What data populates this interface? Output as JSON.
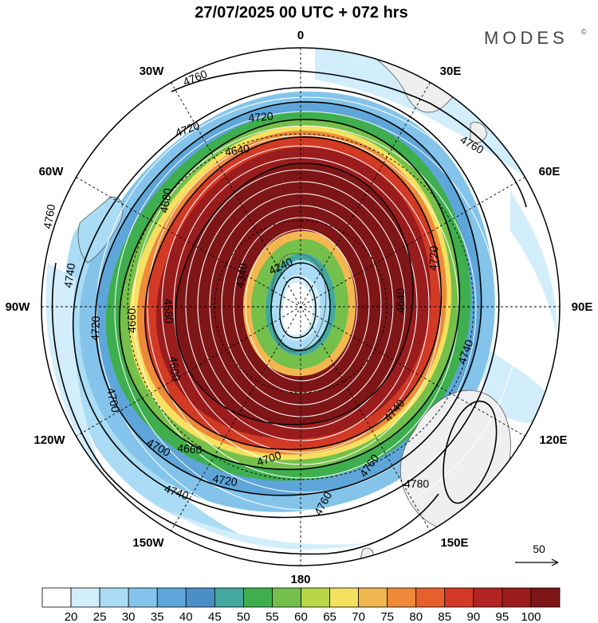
{
  "title": "27/07/2025  00 UTC  + 072 hrs",
  "brand": "MODES",
  "brand_mark": "©",
  "longitude_labels": {
    "n": "0",
    "ne30": "30E",
    "ne60": "60E",
    "e": "90E",
    "se120": "120E",
    "se150": "150E",
    "s": "180",
    "sw150": "150W",
    "sw120": "120W",
    "w": "90W",
    "nw60": "60W",
    "nw30": "30W"
  },
  "contour_labels": {
    "c4760a": "4760",
    "c4760b": "4760",
    "c4760c": "4760",
    "c4760d": "4760",
    "c4760e": "4760",
    "c4740a": "4740",
    "c4740b": "4740",
    "c4740c": "4740",
    "c4740d": "4740",
    "c4720a": "4720",
    "c4720b": "4720",
    "c4720c": "4720",
    "c4720d": "4720",
    "c4720e": "4720",
    "c4700a": "4700",
    "c4700b": "4700",
    "c4700c": "4700",
    "c4680": "4680",
    "c4660a": "4660",
    "c4660b": "4660",
    "c4640a": "4640",
    "c4640b": "4640",
    "c4600": "4600",
    "c4580": "4580",
    "c4340": "4340",
    "c4240": "4240",
    "c4780": "4780"
  },
  "vector_reference": "50",
  "colorbar": {
    "colors": [
      "#ffffff",
      "#d2eefb",
      "#aadcf5",
      "#84c4ea",
      "#5ea6d9",
      "#4b8fc7",
      "#42a8a0",
      "#3fae4e",
      "#75c04b",
      "#b8d646",
      "#f5e060",
      "#f3b750",
      "#ee8a39",
      "#e6602c",
      "#d23a26",
      "#b42323",
      "#9a1c1c",
      "#7e1517"
    ],
    "ticks": [
      "20",
      "25",
      "30",
      "35",
      "40",
      "45",
      "50",
      "55",
      "60",
      "65",
      "70",
      "75",
      "80",
      "85",
      "90",
      "95",
      "100"
    ]
  },
  "colors": {
    "land": "#efefef",
    "coast": "#555555",
    "contour": "#000000",
    "streamline": "#ffffff"
  }
}
